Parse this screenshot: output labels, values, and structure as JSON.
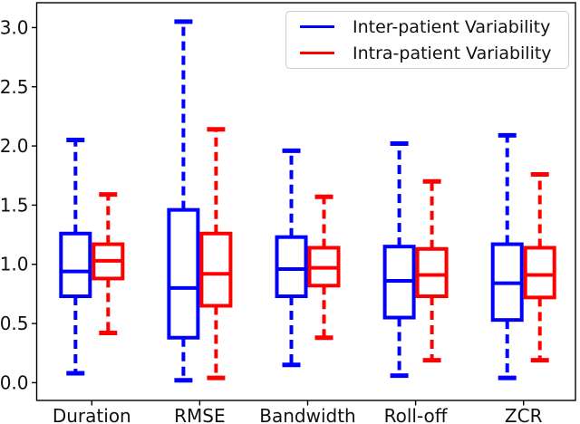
{
  "figure": {
    "background": "#ffffff",
    "axis_color": "#000000"
  },
  "chart_data": {
    "type": "boxplot",
    "title": "",
    "xlabel": "",
    "ylabel": "",
    "categories": [
      "Duration",
      "RMSE",
      "Bandwidth",
      "Roll-off",
      "ZCR"
    ],
    "y_tick_labels": [
      "0.0",
      "0.5",
      "1.0",
      "1.5",
      "2.0",
      "2.5",
      "3.0"
    ],
    "y_ticks": [
      0.0,
      0.5,
      1.0,
      1.5,
      2.0,
      2.5,
      3.0
    ],
    "ylim": [
      -0.15,
      3.21
    ],
    "grid": false,
    "legend_position": "upper right",
    "whisker_style": "dashed",
    "series": [
      {
        "name": "Inter-patient Variability",
        "color": "#0000ff",
        "boxes": [
          {
            "category": "Duration",
            "whisker_low": 0.08,
            "q1": 0.73,
            "median": 0.94,
            "q3": 1.26,
            "whisker_high": 2.05
          },
          {
            "category": "RMSE",
            "whisker_low": 0.02,
            "q1": 0.38,
            "median": 0.8,
            "q3": 1.46,
            "whisker_high": 3.05
          },
          {
            "category": "Bandwidth",
            "whisker_low": 0.15,
            "q1": 0.73,
            "median": 0.96,
            "q3": 1.23,
            "whisker_high": 1.96
          },
          {
            "category": "Roll-off",
            "whisker_low": 0.06,
            "q1": 0.55,
            "median": 0.86,
            "q3": 1.15,
            "whisker_high": 2.02
          },
          {
            "category": "ZCR",
            "whisker_low": 0.04,
            "q1": 0.53,
            "median": 0.84,
            "q3": 1.17,
            "whisker_high": 2.09
          }
        ]
      },
      {
        "name": "Intra-patient Variability",
        "color": "#ff0000",
        "boxes": [
          {
            "category": "Duration",
            "whisker_low": 0.42,
            "q1": 0.88,
            "median": 1.03,
            "q3": 1.17,
            "whisker_high": 1.59
          },
          {
            "category": "RMSE",
            "whisker_low": 0.04,
            "q1": 0.65,
            "median": 0.92,
            "q3": 1.26,
            "whisker_high": 2.14
          },
          {
            "category": "Bandwidth",
            "whisker_low": 0.38,
            "q1": 0.82,
            "median": 0.97,
            "q3": 1.14,
            "whisker_high": 1.57
          },
          {
            "category": "Roll-off",
            "whisker_low": 0.19,
            "q1": 0.73,
            "median": 0.91,
            "q3": 1.13,
            "whisker_high": 1.7
          },
          {
            "category": "ZCR",
            "whisker_low": 0.19,
            "q1": 0.72,
            "median": 0.91,
            "q3": 1.14,
            "whisker_high": 1.76
          }
        ]
      }
    ]
  }
}
